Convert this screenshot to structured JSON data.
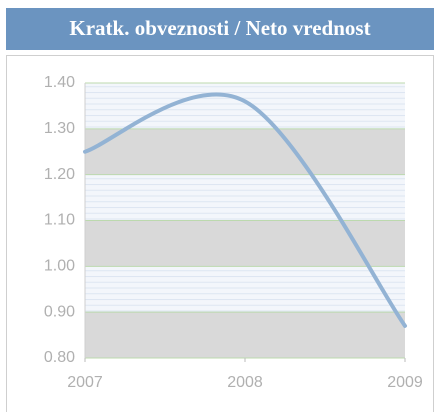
{
  "chart_data": {
    "type": "line",
    "title": "Kratk. obveznosti / Neto vrednost",
    "x": [
      2007,
      2008,
      2009
    ],
    "values": [
      1.25,
      1.36,
      0.87
    ],
    "color": "#93b3d4",
    "xlim": [
      2007,
      2009
    ],
    "xticks": [
      2007,
      2008,
      2009
    ],
    "ylim": [
      0.8,
      1.4
    ],
    "yticks": [
      {
        "value": 0.8,
        "label": "0.80"
      },
      {
        "value": 0.9,
        "label": "0.90"
      },
      {
        "value": 1.0,
        "label": "1.00"
      },
      {
        "value": 1.1,
        "label": "1.10"
      },
      {
        "value": 1.2,
        "label": "1.20"
      },
      {
        "value": 1.3,
        "label": "1.30"
      },
      {
        "value": 1.4,
        "label": "1.40"
      }
    ],
    "grid": true
  }
}
